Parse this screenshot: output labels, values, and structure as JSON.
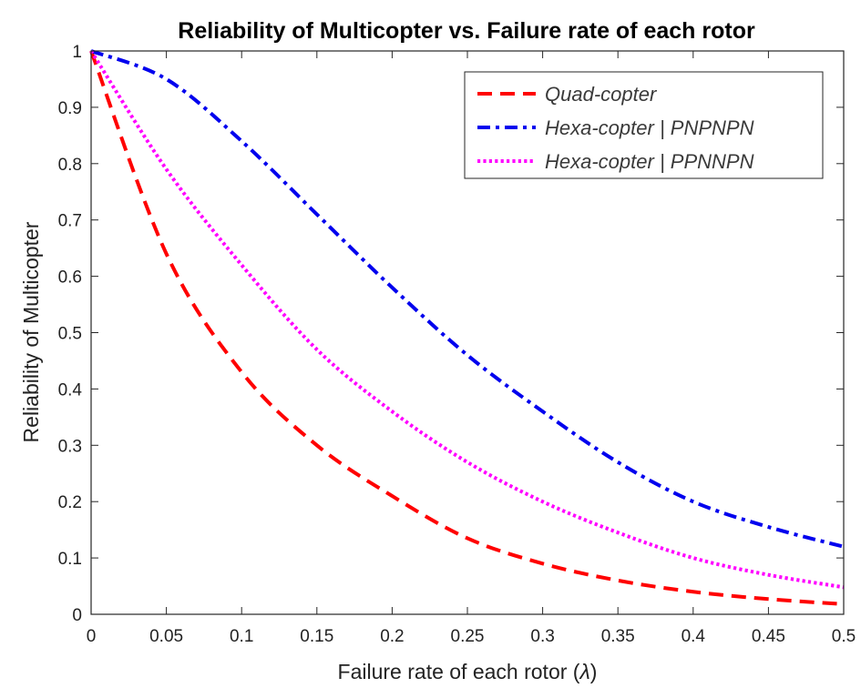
{
  "chart_data": {
    "type": "line",
    "title": "Reliability of Multicopter vs. Failure rate of each rotor",
    "xlabel": "Failure rate of each rotor",
    "xlabel_symbol": "λ",
    "ylabel": "Reliability of Multicopter",
    "xlim": [
      0,
      0.5
    ],
    "ylim": [
      0,
      1
    ],
    "xticks": [
      "0",
      "0.05",
      "0.1",
      "0.15",
      "0.2",
      "0.25",
      "0.3",
      "0.35",
      "0.4",
      "0.45",
      "0.5"
    ],
    "yticks": [
      "0",
      "0.1",
      "0.2",
      "0.3",
      "0.4",
      "0.5",
      "0.6",
      "0.7",
      "0.8",
      "0.9",
      "1"
    ],
    "grid": false,
    "legend_position": "top-right",
    "x": [
      0,
      0.05,
      0.1,
      0.15,
      0.2,
      0.25,
      0.3,
      0.35,
      0.4,
      0.45,
      0.5
    ],
    "series": [
      {
        "name": "Quad-copter",
        "color": "#ff0000",
        "line_style": "dashed",
        "values": [
          1.0,
          0.64,
          0.43,
          0.3,
          0.21,
          0.135,
          0.09,
          0.06,
          0.04,
          0.027,
          0.018
        ]
      },
      {
        "name": "Hexa-copter | PNPNPN",
        "color": "#0000ee",
        "line_style": "dash-dot",
        "values": [
          1.0,
          0.95,
          0.84,
          0.71,
          0.58,
          0.46,
          0.36,
          0.27,
          0.2,
          0.155,
          0.12
        ]
      },
      {
        "name": "Hexa-copter | PPNNPN",
        "color": "#ff00ff",
        "line_style": "dotted",
        "values": [
          1.0,
          0.79,
          0.62,
          0.47,
          0.36,
          0.27,
          0.2,
          0.145,
          0.1,
          0.07,
          0.048
        ]
      }
    ]
  }
}
